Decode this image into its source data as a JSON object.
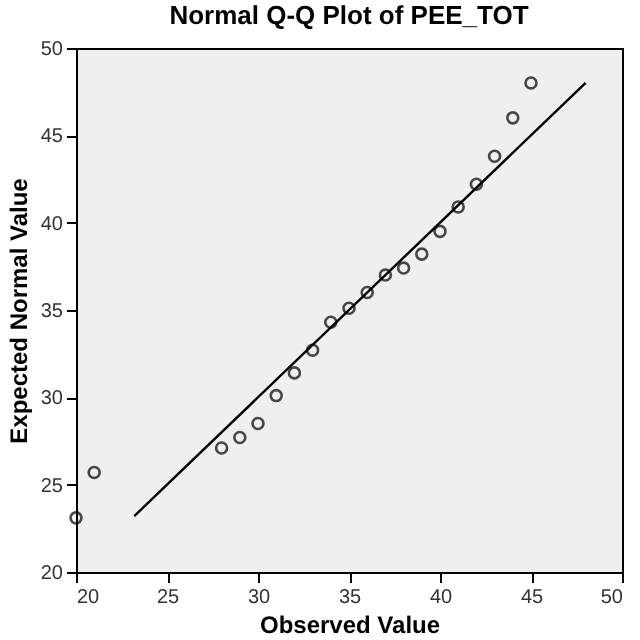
{
  "chart_data": {
    "type": "scatter",
    "title": "Normal Q-Q Plot of PEE_TOT",
    "xlabel": "Observed Value",
    "ylabel": "Expected Normal Value",
    "xlim": [
      20,
      50
    ],
    "ylim": [
      20,
      50
    ],
    "xticks": [
      20,
      25,
      30,
      35,
      40,
      45,
      50
    ],
    "yticks": [
      20,
      25,
      30,
      35,
      40,
      45,
      50
    ],
    "grid": false,
    "series": [
      {
        "color": "#000000",
        "marker": "circle",
        "x": [
          20,
          21,
          28,
          29,
          30,
          31,
          32,
          33,
          34,
          35,
          36,
          37,
          38,
          39,
          40,
          41,
          42,
          43,
          44,
          45
        ],
        "values": [
          23.1,
          25.7,
          27.1,
          27.7,
          28.5,
          30.1,
          31.4,
          32.7,
          34.3,
          35.1,
          36.0,
          37.0,
          37.4,
          38.2,
          39.5,
          40.9,
          42.2,
          43.8,
          46.0,
          48.0
        ]
      },
      {
        "type": "line",
        "marker": "none",
        "color": "#000000",
        "x": [
          23.2,
          48
        ],
        "values": [
          23.2,
          48
        ]
      }
    ]
  }
}
